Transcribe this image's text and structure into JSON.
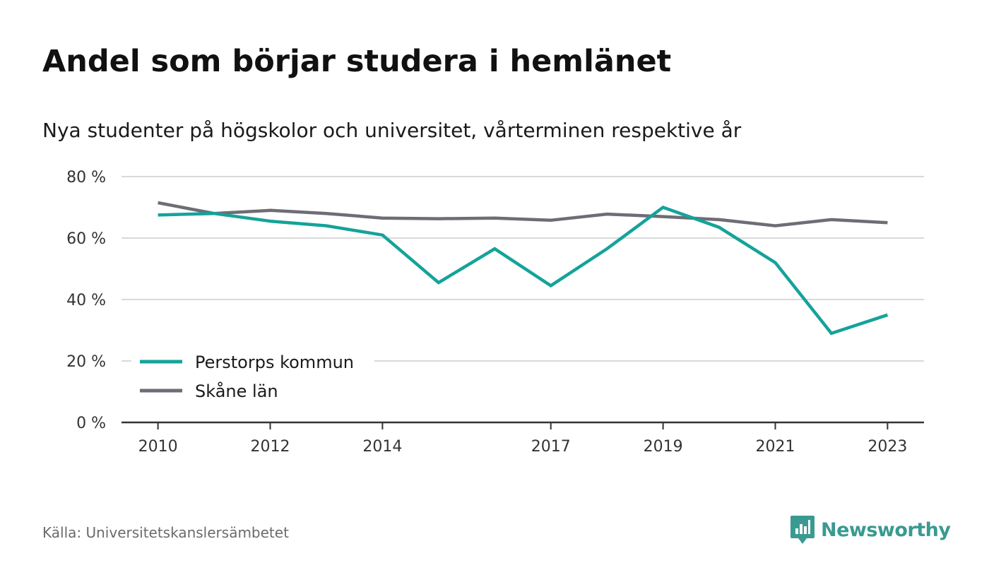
{
  "title": "Andel som börjar studera i hemlänet",
  "subtitle": "Nya studenter på högskolor och universitet, vårterminen respektive år",
  "source": "Källa: Universitetskanslersämbetet",
  "brand": {
    "name": "Newsworthy",
    "icon": "newsworthy-logo-icon",
    "color": "#3a9a91"
  },
  "colors": {
    "series_1": "#14a39a",
    "series_2": "#6e6d76",
    "grid": "#d9d9d9",
    "axis": "#333333"
  },
  "chart_data": {
    "type": "line",
    "title": "Andel som börjar studera i hemlänet",
    "subtitle": "Nya studenter på högskolor och universitet, vårterminen respektive år",
    "xlabel": "",
    "ylabel": "",
    "x": [
      2010,
      2011,
      2012,
      2013,
      2014,
      2015,
      2016,
      2017,
      2018,
      2019,
      2020,
      2021,
      2022,
      2023
    ],
    "xticks": [
      2010,
      2012,
      2014,
      2017,
      2019,
      2021,
      2023
    ],
    "xlim": [
      2009.35,
      2023.65
    ],
    "ylim": [
      0,
      80
    ],
    "yticks": [
      0,
      20,
      40,
      60,
      80
    ],
    "ytick_labels": [
      "0 %",
      "20 %",
      "40 %",
      "60 %",
      "80 %"
    ],
    "grid": true,
    "legend_position": "bottom-left",
    "series": [
      {
        "name": "Perstorps kommun",
        "color": "#14a39a",
        "values": [
          67.5,
          68.0,
          65.5,
          64.0,
          61.0,
          45.5,
          56.5,
          44.5,
          56.5,
          70.0,
          63.5,
          52.0,
          29.0,
          35.0
        ]
      },
      {
        "name": "Skåne län",
        "color": "#6e6d76",
        "values": [
          71.5,
          68.0,
          69.0,
          68.0,
          66.5,
          66.3,
          66.5,
          65.8,
          67.8,
          67.0,
          66.0,
          64.0,
          66.0,
          65.0
        ]
      }
    ]
  }
}
